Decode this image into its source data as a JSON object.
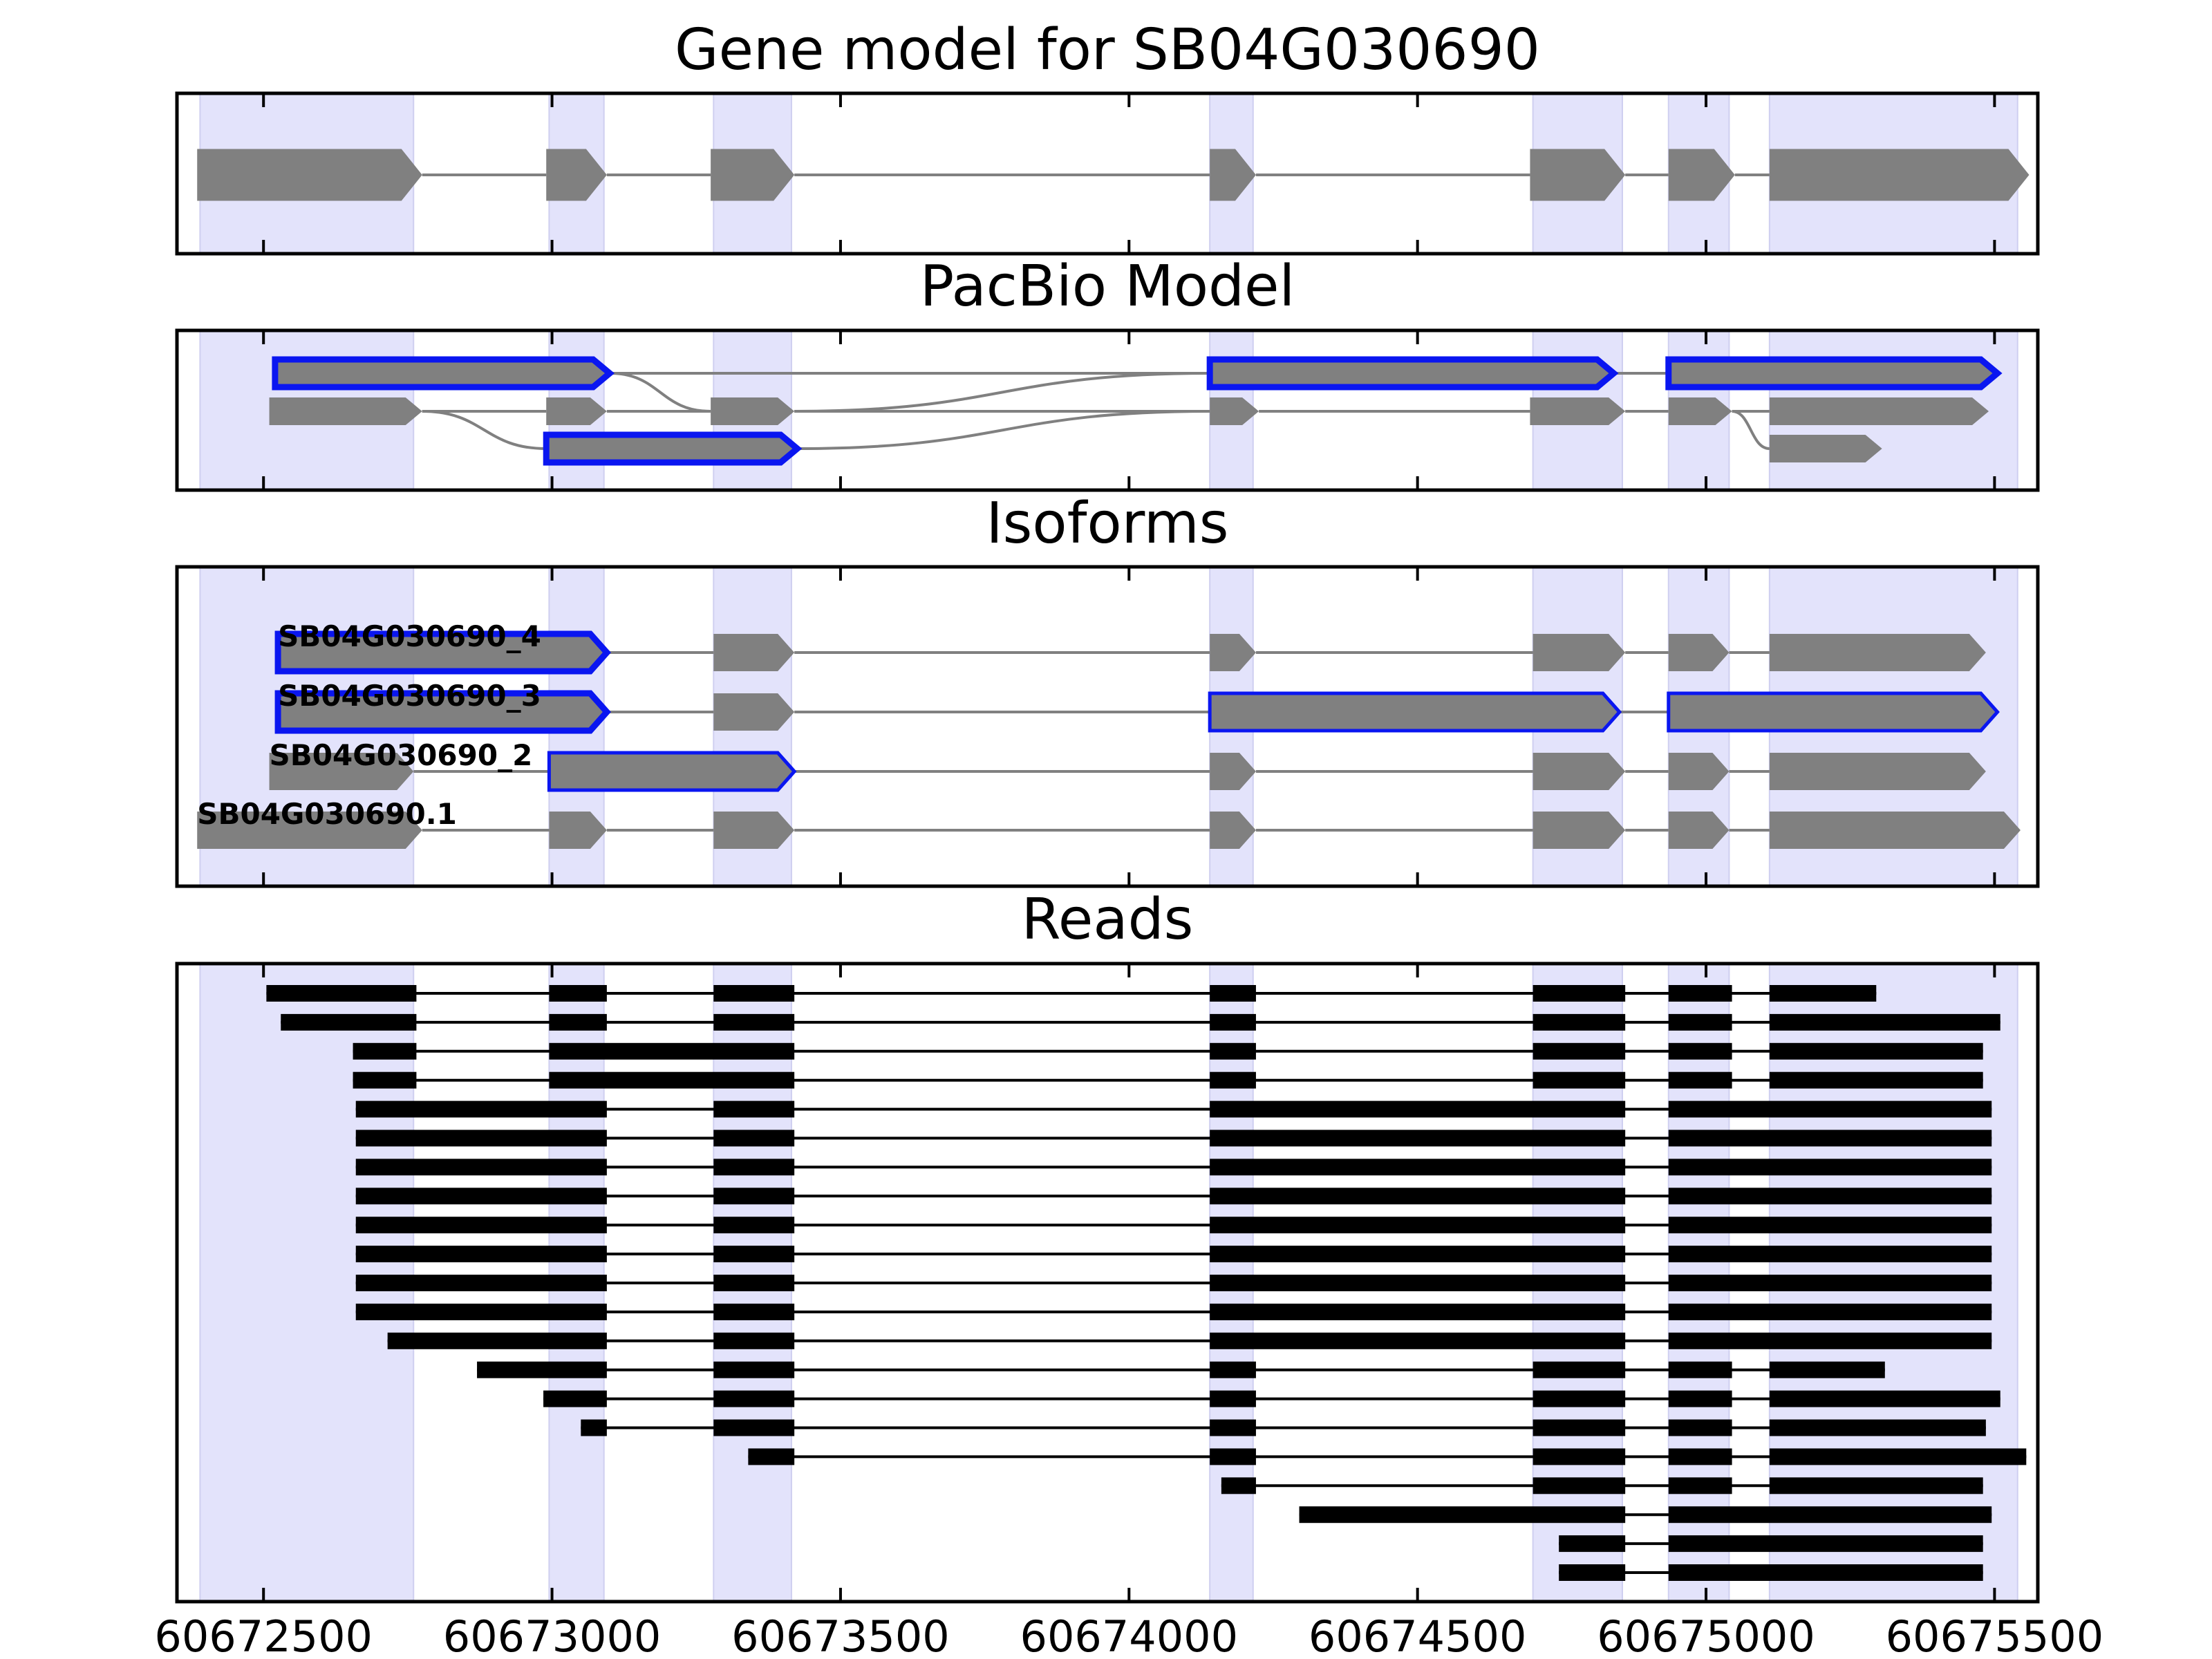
{
  "chart_data": {
    "type": "gene-structure",
    "xlim": [
      60672350,
      60675575
    ],
    "exon_bands": [
      [
        60672390,
        60672760
      ],
      [
        60672995,
        60673090
      ],
      [
        60673280,
        60673415
      ],
      [
        60674140,
        60674215
      ],
      [
        60674700,
        60674855
      ],
      [
        60674935,
        60675040
      ],
      [
        60675110,
        60675540
      ]
    ],
    "panels": [
      {
        "title": "Gene model for SB04G030690",
        "tick_labels": [
          "",
          "",
          "",
          "",
          "",
          "",
          ""
        ],
        "tracks": [
          {
            "label": "",
            "highlight": false,
            "exons": [
              [
                60672385,
                60672775
              ],
              [
                60672990,
                60673095
              ],
              [
                60673275,
                60673420
              ],
              [
                60674140,
                60674220
              ],
              [
                60674695,
                60674860
              ],
              [
                60674935,
                60675050
              ],
              [
                60675110,
                60675560
              ]
            ]
          }
        ]
      },
      {
        "title": "PacBio Model",
        "tick_labels": [
          "",
          "",
          "",
          "",
          "",
          "",
          ""
        ],
        "tracks": [
          {
            "label": "",
            "highlight": true,
            "exons": [
              [
                60672520,
                60673100
              ],
              [
                60674140,
                60674840
              ],
              [
                60674935,
                60675505
              ]
            ]
          },
          {
            "label": "",
            "highlight": false,
            "exons": [
              [
                60672510,
                60672775
              ],
              [
                60672990,
                60673095
              ],
              [
                60673275,
                60673420
              ],
              [
                60674140,
                60674225
              ],
              [
                60674695,
                60674860
              ],
              [
                60674935,
                60675045
              ],
              [
                60675110,
                60675490
              ]
            ]
          },
          {
            "label": "",
            "highlight": true,
            "exons": [
              [
                60672990,
                60673425
              ]
            ]
          },
          {
            "label": "",
            "highlight": false,
            "exons": [
              [
                60675110,
                60675305
              ]
            ]
          }
        ]
      },
      {
        "title": "Isoforms",
        "tick_labels": [
          "",
          "",
          "",
          "",
          "",
          "",
          ""
        ],
        "tracks": [
          {
            "label": "SB04G030690_4",
            "highlight": false,
            "exons": [
              [
                60672525,
                60673095
              ],
              [
                60673280,
                60673420
              ],
              [
                60674140,
                60674220
              ],
              [
                60674700,
                60674860
              ],
              [
                60674935,
                60675040
              ],
              [
                60675110,
                60675485
              ]
            ]
          },
          {
            "label": "SB04G030690_3",
            "highlight": false,
            "exons": [
              [
                60672525,
                60673095
              ],
              [
                60673280,
                60673420
              ],
              [
                60674140,
                60674850
              ],
              [
                60674935,
                60675505
              ]
            ]
          },
          {
            "label": "SB04G030690_2",
            "highlight": false,
            "exons": [
              [
                60672510,
                60672760
              ],
              [
                60672995,
                60673420
              ],
              [
                60674140,
                60674220
              ],
              [
                60674700,
                60674860
              ],
              [
                60674935,
                60675040
              ],
              [
                60675110,
                60675485
              ]
            ]
          },
          {
            "label": "SB04G030690.1",
            "highlight": false,
            "exons": [
              [
                60672385,
                60672775
              ],
              [
                60672995,
                60673095
              ],
              [
                60673280,
                60673420
              ],
              [
                60674140,
                60674220
              ],
              [
                60674700,
                60674860
              ],
              [
                60674935,
                60675040
              ],
              [
                60675110,
                60675545
              ]
            ]
          }
        ],
        "highlighted_exons": [
          [
            0,
            0
          ],
          [
            1,
            0
          ],
          [
            1,
            2
          ],
          [
            1,
            3
          ],
          [
            2,
            1
          ]
        ]
      },
      {
        "title": "Reads",
        "tick_labels": [
          "60672500",
          "60673000",
          "60673500",
          "60674000",
          "60674500",
          "60675000",
          "60675500"
        ],
        "reads": [
          [
            [
              60672505,
              60672765
            ],
            [
              60672995,
              60673095
            ],
            [
              60673280,
              60673420
            ],
            [
              60674140,
              60674220
            ],
            [
              60674700,
              60674860
            ],
            [
              60674935,
              60675045
            ],
            [
              60675110,
              60675295
            ]
          ],
          [
            [
              60672530,
              60672765
            ],
            [
              60672995,
              60673095
            ],
            [
              60673280,
              60673420
            ],
            [
              60674140,
              60674220
            ],
            [
              60674700,
              60674860
            ],
            [
              60674935,
              60675045
            ],
            [
              60675110,
              60675510
            ]
          ],
          [
            [
              60672655,
              60672765
            ],
            [
              60672995,
              60673420
            ],
            [
              60674140,
              60674220
            ],
            [
              60674700,
              60674860
            ],
            [
              60674935,
              60675045
            ],
            [
              60675110,
              60675480
            ]
          ],
          [
            [
              60672655,
              60672765
            ],
            [
              60672995,
              60673420
            ],
            [
              60674140,
              60674220
            ],
            [
              60674700,
              60674860
            ],
            [
              60674935,
              60675045
            ],
            [
              60675110,
              60675480
            ]
          ],
          [
            [
              60672660,
              60673095
            ],
            [
              60673280,
              60673420
            ],
            [
              60674140,
              60674860
            ],
            [
              60674935,
              60675495
            ]
          ],
          [
            [
              60672660,
              60673095
            ],
            [
              60673280,
              60673420
            ],
            [
              60674140,
              60674860
            ],
            [
              60674935,
              60675495
            ]
          ],
          [
            [
              60672660,
              60673095
            ],
            [
              60673280,
              60673420
            ],
            [
              60674140,
              60674860
            ],
            [
              60674935,
              60675495
            ]
          ],
          [
            [
              60672660,
              60673095
            ],
            [
              60673280,
              60673420
            ],
            [
              60674140,
              60674860
            ],
            [
              60674935,
              60675495
            ]
          ],
          [
            [
              60672660,
              60673095
            ],
            [
              60673280,
              60673420
            ],
            [
              60674140,
              60674860
            ],
            [
              60674935,
              60675495
            ]
          ],
          [
            [
              60672660,
              60673095
            ],
            [
              60673280,
              60673420
            ],
            [
              60674140,
              60674860
            ],
            [
              60674935,
              60675495
            ]
          ],
          [
            [
              60672660,
              60673095
            ],
            [
              60673280,
              60673420
            ],
            [
              60674140,
              60674860
            ],
            [
              60674935,
              60675495
            ]
          ],
          [
            [
              60672660,
              60673095
            ],
            [
              60673280,
              60673420
            ],
            [
              60674140,
              60674860
            ],
            [
              60674935,
              60675495
            ]
          ],
          [
            [
              60672715,
              60673095
            ],
            [
              60673280,
              60673420
            ],
            [
              60674140,
              60674860
            ],
            [
              60674935,
              60675495
            ]
          ],
          [
            [
              60672870,
              60673095
            ],
            [
              60673280,
              60673420
            ],
            [
              60674140,
              60674220
            ],
            [
              60674700,
              60674860
            ],
            [
              60674935,
              60675045
            ],
            [
              60675110,
              60675310
            ]
          ],
          [
            [
              60672985,
              60673095
            ],
            [
              60673280,
              60673420
            ],
            [
              60674140,
              60674220
            ],
            [
              60674700,
              60674860
            ],
            [
              60674935,
              60675045
            ],
            [
              60675110,
              60675510
            ]
          ],
          [
            [
              60673050,
              60673095
            ],
            [
              60673280,
              60673420
            ],
            [
              60674140,
              60674220
            ],
            [
              60674700,
              60674860
            ],
            [
              60674935,
              60675045
            ],
            [
              60675110,
              60675485
            ]
          ],
          [
            [
              60673340,
              60673420
            ],
            [
              60674140,
              60674220
            ],
            [
              60674700,
              60674860
            ],
            [
              60674935,
              60675045
            ],
            [
              60675110,
              60675555
            ]
          ],
          [
            [
              60674160,
              60674220
            ],
            [
              60674700,
              60674860
            ],
            [
              60674935,
              60675045
            ],
            [
              60675110,
              60675480
            ]
          ],
          [
            [
              60674295,
              60674860
            ],
            [
              60674935,
              60675495
            ]
          ],
          [
            [
              60674745,
              60674860
            ],
            [
              60674935,
              60675480
            ]
          ],
          [
            [
              60674745,
              60674860
            ],
            [
              60674935,
              60675480
            ]
          ]
        ]
      }
    ],
    "colors": {
      "band": "#e3e3fb",
      "band_edge": "#cfcff0",
      "exon": "#808080",
      "intron": "#808080",
      "highlight": "#0a16f0",
      "read": "#000000"
    }
  }
}
